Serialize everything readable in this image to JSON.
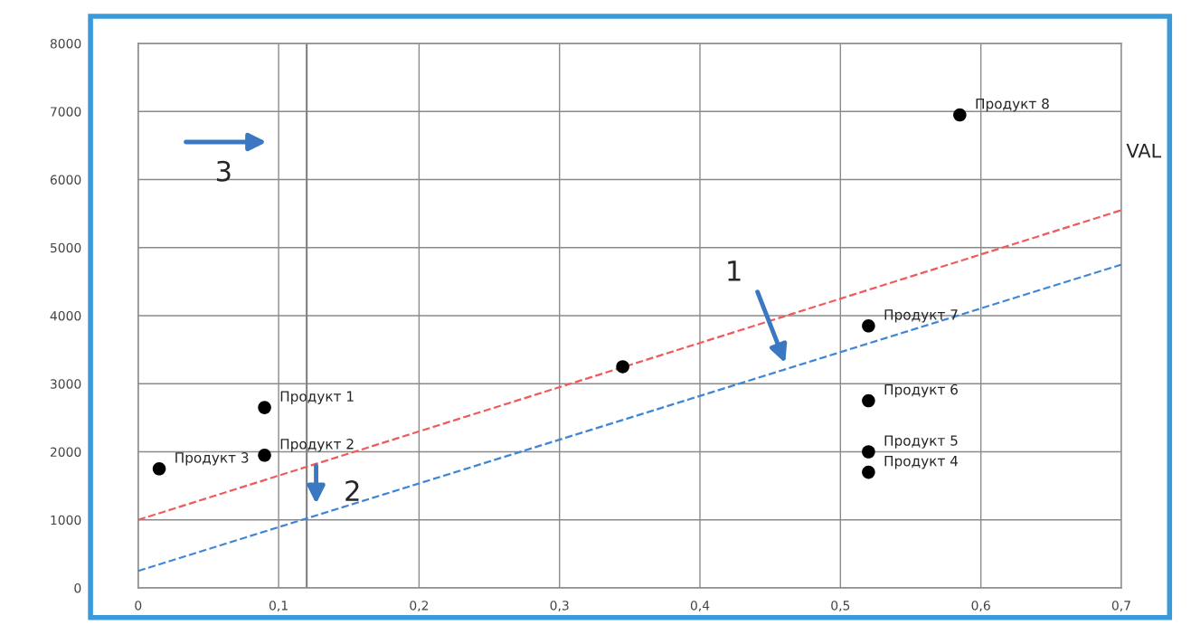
{
  "chart_data": {
    "type": "scatter",
    "xlim": [
      0,
      0.7
    ],
    "ylim": [
      0,
      8000
    ],
    "xticks": [
      0,
      {
        "value": 0.1,
        "label": "0,1"
      },
      {
        "value": 0.2,
        "label": "0,2"
      },
      {
        "value": 0.3,
        "label": "0,3"
      },
      {
        "value": 0.4,
        "label": "0,4"
      },
      {
        "value": 0.5,
        "label": "0,5"
      },
      {
        "value": 0.6,
        "label": "0,6"
      },
      {
        "value": 0.7,
        "label": "0,7"
      }
    ],
    "yticks": [
      0,
      1000,
      2000,
      3000,
      4000,
      5000,
      6000,
      7000,
      8000
    ],
    "grid": true,
    "marker": "circle",
    "series": [
      {
        "color": "#000000",
        "x": [
          0.015,
          0.09,
          0.09,
          0.345,
          0.52,
          0.52,
          0.52,
          0.52,
          0.585
        ],
        "values": [
          1750,
          2650,
          1950,
          3250,
          3850,
          2750,
          2000,
          1700,
          6950
        ]
      },
      {
        "type": "line",
        "color": "#f05a5a",
        "line_style": "dashed",
        "marker": "none",
        "x": [
          0,
          0.7
        ],
        "values": [
          1000,
          5550
        ]
      },
      {
        "type": "line",
        "color": "#3f86d6",
        "line_style": "dashed",
        "marker": "none",
        "x": [
          0,
          0.7
        ],
        "values": [
          250,
          4750
        ]
      }
    ],
    "ref_lines": [
      {
        "axis": "x",
        "value": 0.12,
        "color": "#808080"
      }
    ],
    "annotations": [
      {
        "text": "Продукт 3",
        "x": 0.015,
        "y": 1750
      },
      {
        "text": "Продукт 1",
        "x": 0.09,
        "y": 2650
      },
      {
        "text": "Продукт 2",
        "x": 0.09,
        "y": 1950
      },
      {
        "text": "Продукт 7",
        "x": 0.52,
        "y": 3850
      },
      {
        "text": "Продукт 6",
        "x": 0.52,
        "y": 2750
      },
      {
        "text": "Продукт 5",
        "x": 0.52,
        "y": 2000
      },
      {
        "text": "Продукт 4",
        "x": 0.52,
        "y": 1700
      },
      {
        "text": "Продукт 8",
        "x": 0.585,
        "y": 6950
      },
      "1",
      "2",
      "3",
      "VAL"
    ]
  }
}
